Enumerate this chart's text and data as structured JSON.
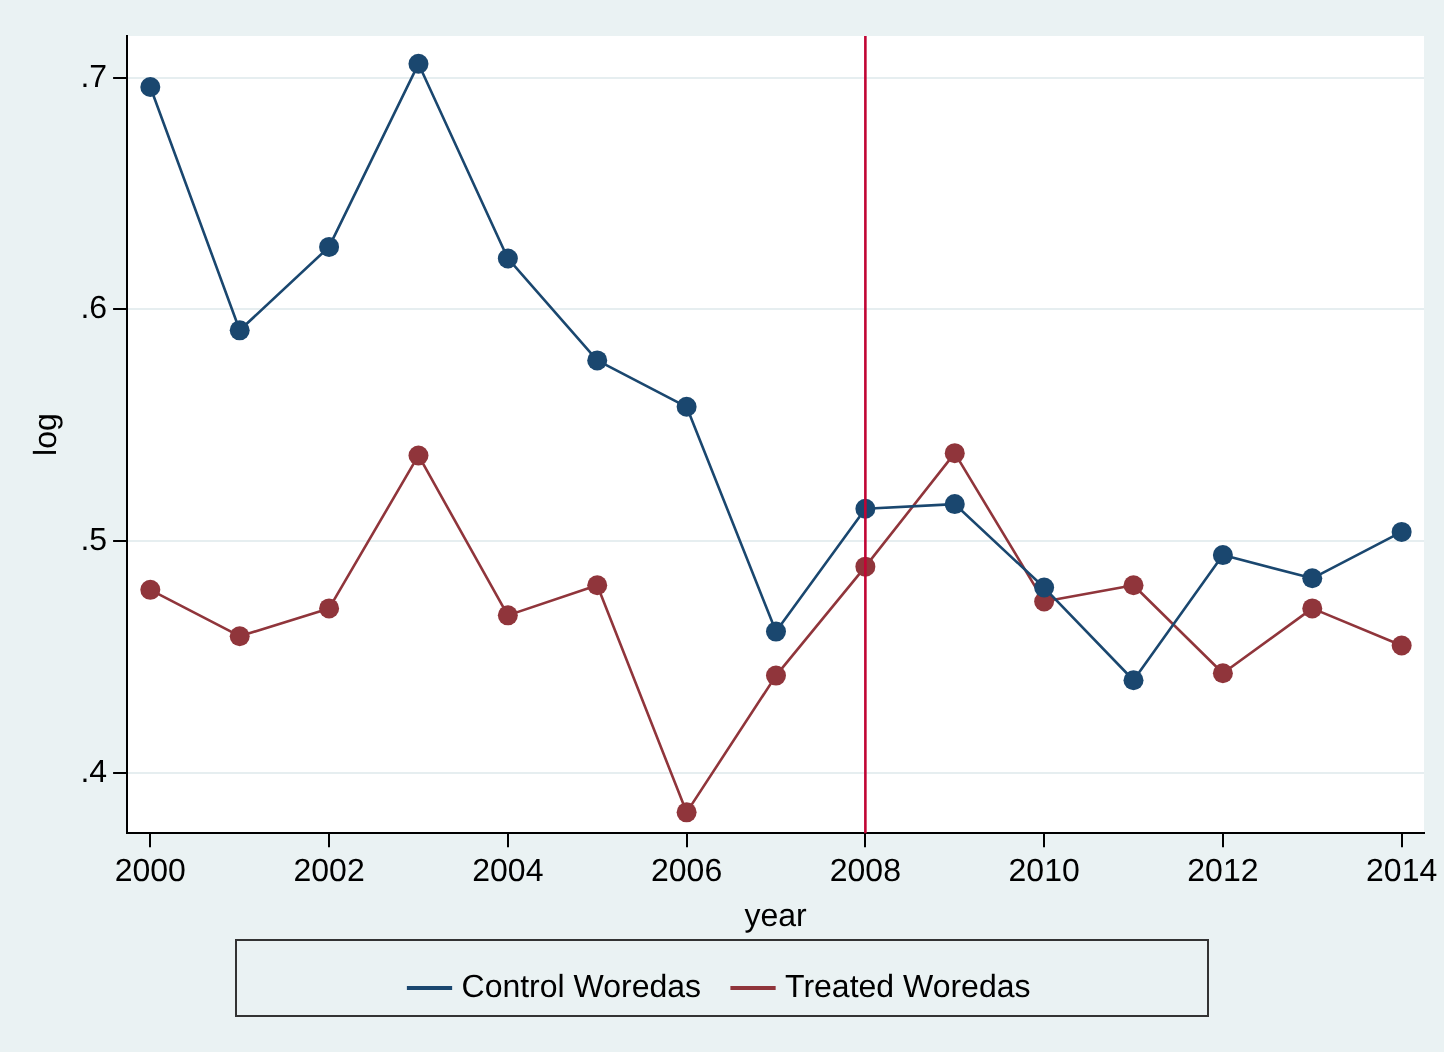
{
  "chart_data": {
    "type": "line",
    "xlabel": "year",
    "ylabel": "log",
    "x": [
      2000,
      2001,
      2002,
      2003,
      2004,
      2005,
      2006,
      2007,
      2008,
      2009,
      2010,
      2011,
      2012,
      2013,
      2014
    ],
    "series": [
      {
        "name": "Control Woredas",
        "color": "#1a476f",
        "values": [
          0.696,
          0.591,
          0.627,
          0.706,
          0.622,
          0.578,
          0.558,
          0.461,
          0.514,
          0.516,
          0.48,
          0.44,
          0.494,
          0.484,
          0.504
        ]
      },
      {
        "name": "Treated Woredas",
        "color": "#90353b",
        "values": [
          0.479,
          0.459,
          0.471,
          0.537,
          0.468,
          0.481,
          0.383,
          0.442,
          0.489,
          0.538,
          0.474,
          0.481,
          0.443,
          0.471,
          0.455
        ]
      }
    ],
    "xlim": [
      1999.74,
      2014.25
    ],
    "xticks": [
      2000,
      2002,
      2004,
      2006,
      2008,
      2010,
      2012,
      2014
    ],
    "ylim": [
      0.374,
      0.718
    ],
    "yticks": [
      {
        "value": 0.4,
        "label": ".4"
      },
      {
        "value": 0.5,
        "label": ".5"
      },
      {
        "value": 0.6,
        "label": ".6"
      },
      {
        "value": 0.7,
        "label": ".7"
      }
    ],
    "ref_lines": [
      {
        "axis": "x",
        "value": 2008,
        "color": "#c10534"
      }
    ],
    "grid": "y",
    "legend": "bottom",
    "marker": "circle",
    "line_style": "solid"
  }
}
